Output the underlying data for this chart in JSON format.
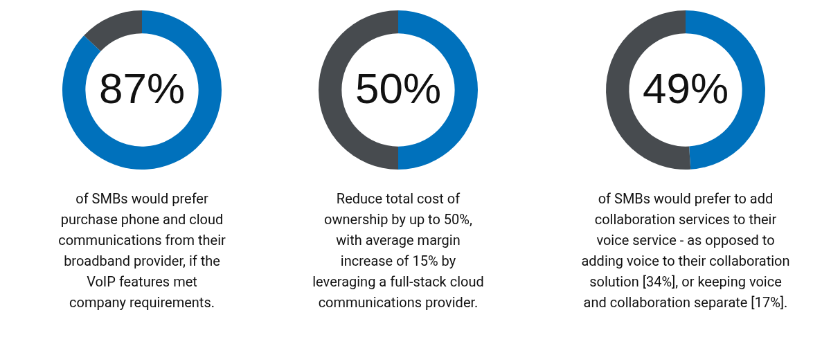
{
  "chart_data": [
    {
      "type": "donut",
      "categories": [
        null,
        null
      ],
      "values": [
        87,
        13
      ],
      "colors": [
        "#0071bc",
        "#474b4f"
      ],
      "value_labels": [
        "87%",
        null
      ],
      "legend": false,
      "annotations": [
        "of SMBs would prefer\npurchase phone and cloud\ncommunications from their\nbroadband provider, if the\nVoIP features met\ncompany requirements."
      ]
    },
    {
      "type": "donut",
      "categories": [
        null,
        null
      ],
      "values": [
        50,
        50
      ],
      "colors": [
        "#0071bc",
        "#474b4f"
      ],
      "value_labels": [
        "50%",
        null
      ],
      "legend": false,
      "annotations": [
        "Reduce total cost of\nownership by up to 50%,\nwith average margin\nincrease of 15% by\nleveraging a full-stack cloud\ncommunications provider."
      ]
    },
    {
      "type": "donut",
      "categories": [
        null,
        null
      ],
      "values": [
        49,
        51
      ],
      "colors": [
        "#0071bc",
        "#474b4f"
      ],
      "value_labels": [
        "49%",
        null
      ],
      "legend": false,
      "annotations": [
        "of SMBs would prefer to add\ncollaboration services to their\nvoice service - as opposed to\nadding voice to their collaboration\nsolution [34%], or keeping voice\nand collaboration separate [17%]."
      ]
    }
  ]
}
